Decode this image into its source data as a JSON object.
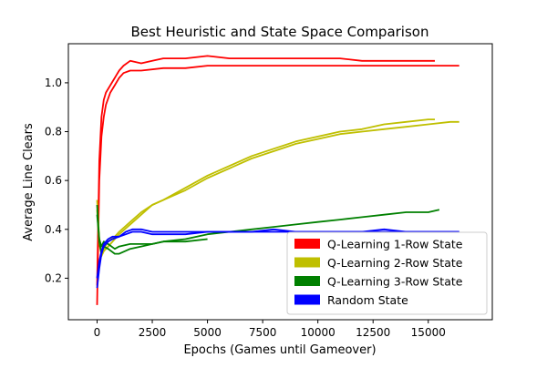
{
  "chart_data": {
    "type": "line",
    "title": "Best Heuristic and State Space Comparison",
    "xlabel": "Epochs (Games until Gameover)",
    "ylabel": "Average Line Clears",
    "xlim": [
      -1300,
      17900
    ],
    "ylim": [
      0.03,
      1.16
    ],
    "xticks": [
      0,
      2500,
      5000,
      7500,
      10000,
      12500,
      15000
    ],
    "xtick_labels": [
      "0",
      "2500",
      "5000",
      "7500",
      "10000",
      "12500",
      "15000"
    ],
    "yticks": [
      0.2,
      0.4,
      0.6,
      0.8,
      1.0
    ],
    "ytick_labels": [
      "0.2",
      "0.4",
      "0.6",
      "0.8",
      "1.0"
    ],
    "grid": false,
    "legend_position": "lower-right",
    "series": [
      {
        "name": "Q-Learning 1-Row State",
        "color": "#ff0000",
        "runs": [
          {
            "x": [
              0,
              50,
              100,
              200,
              300,
              400,
              600,
              800,
              1000,
              1200,
              1500,
              2000,
              2500,
              3000,
              4000,
              5000,
              6000,
              7000,
              8000,
              9000,
              10000,
              11000,
              12000,
              13000,
              14000,
              15000,
              15300
            ],
            "y": [
              0.17,
              0.42,
              0.68,
              0.86,
              0.93,
              0.96,
              0.99,
              1.02,
              1.05,
              1.07,
              1.09,
              1.08,
              1.09,
              1.1,
              1.1,
              1.11,
              1.1,
              1.1,
              1.1,
              1.1,
              1.1,
              1.1,
              1.09,
              1.09,
              1.09,
              1.09,
              1.09
            ]
          },
          {
            "x": [
              0,
              50,
              100,
              200,
              300,
              400,
              600,
              800,
              1000,
              1200,
              1500,
              2000,
              3000,
              4000,
              5000,
              6000,
              7000,
              8000,
              9000,
              10000,
              11000,
              12000,
              13000,
              14000,
              15000,
              16000,
              16400
            ],
            "y": [
              0.09,
              0.35,
              0.6,
              0.78,
              0.86,
              0.91,
              0.96,
              0.99,
              1.02,
              1.04,
              1.05,
              1.05,
              1.06,
              1.06,
              1.07,
              1.07,
              1.07,
              1.07,
              1.07,
              1.07,
              1.07,
              1.07,
              1.07,
              1.07,
              1.07,
              1.07,
              1.07
            ]
          }
        ]
      },
      {
        "name": "Q-Learning 2-Row State",
        "color": "#bfbf00",
        "runs": [
          {
            "x": [
              0,
              100,
              200,
              300,
              500,
              800,
              1000,
              1500,
              2000,
              2500,
              3000,
              4000,
              5000,
              6000,
              7000,
              8000,
              9000,
              10000,
              11000,
              12000,
              13000,
              14000,
              15000,
              15300
            ],
            "y": [
              0.48,
              0.34,
              0.3,
              0.32,
              0.35,
              0.37,
              0.39,
              0.43,
              0.47,
              0.5,
              0.52,
              0.57,
              0.62,
              0.66,
              0.7,
              0.73,
              0.76,
              0.78,
              0.8,
              0.81,
              0.83,
              0.84,
              0.85,
              0.85
            ]
          },
          {
            "x": [
              0,
              100,
              200,
              300,
              500,
              800,
              1000,
              1500,
              2000,
              2500,
              3000,
              4000,
              5000,
              6000,
              7000,
              8000,
              9000,
              10000,
              11000,
              12000,
              13000,
              14000,
              15000,
              16000,
              16400
            ],
            "y": [
              0.52,
              0.36,
              0.29,
              0.31,
              0.33,
              0.36,
              0.38,
              0.42,
              0.46,
              0.5,
              0.52,
              0.56,
              0.61,
              0.65,
              0.69,
              0.72,
              0.75,
              0.77,
              0.79,
              0.8,
              0.81,
              0.82,
              0.83,
              0.84,
              0.84
            ]
          }
        ]
      },
      {
        "name": "Q-Learning 3-Row State",
        "color": "#008000",
        "runs": [
          {
            "x": [
              0,
              100,
              200,
              300,
              500,
              800,
              1000,
              1500,
              2000,
              2500,
              3000,
              4000,
              5000,
              6000,
              7000,
              8000,
              9000,
              10000,
              11000,
              12000,
              13000,
              14000,
              15000,
              15500
            ],
            "y": [
              0.5,
              0.35,
              0.3,
              0.33,
              0.32,
              0.3,
              0.3,
              0.32,
              0.33,
              0.34,
              0.35,
              0.36,
              0.38,
              0.39,
              0.4,
              0.41,
              0.42,
              0.43,
              0.44,
              0.45,
              0.46,
              0.47,
              0.47,
              0.48
            ]
          },
          {
            "x": [
              0,
              100,
              200,
              300,
              500,
              800,
              1000,
              1500,
              2000,
              2500,
              3000,
              4000,
              5000
            ],
            "y": [
              0.46,
              0.36,
              0.33,
              0.35,
              0.34,
              0.32,
              0.33,
              0.34,
              0.34,
              0.34,
              0.35,
              0.35,
              0.36
            ]
          }
        ]
      },
      {
        "name": "Random State",
        "color": "#0000ff",
        "runs": [
          {
            "x": [
              0,
              100,
              200,
              300,
              500,
              700,
              1000,
              1300,
              1600,
              2000,
              2500,
              3000,
              4000,
              5000,
              6000,
              7000,
              8000,
              9000,
              10000,
              11000,
              12000,
              13000,
              14000,
              15000,
              16000,
              16400
            ],
            "y": [
              0.16,
              0.24,
              0.3,
              0.33,
              0.35,
              0.36,
              0.37,
              0.39,
              0.4,
              0.4,
              0.39,
              0.39,
              0.39,
              0.39,
              0.39,
              0.39,
              0.39,
              0.39,
              0.39,
              0.39,
              0.39,
              0.39,
              0.39,
              0.39,
              0.39,
              0.39
            ]
          },
          {
            "x": [
              0,
              100,
              200,
              300,
              500,
              700,
              1000,
              1300,
              1600,
              2000,
              2500,
              3000,
              4000,
              5000,
              6000,
              7000,
              8000,
              9000,
              10000,
              11000,
              12000,
              13000,
              14000,
              15000,
              16000,
              16400
            ],
            "y": [
              0.2,
              0.27,
              0.31,
              0.34,
              0.36,
              0.37,
              0.37,
              0.38,
              0.39,
              0.39,
              0.38,
              0.38,
              0.38,
              0.39,
              0.39,
              0.39,
              0.4,
              0.39,
              0.39,
              0.39,
              0.39,
              0.4,
              0.39,
              0.39,
              0.39,
              0.39
            ]
          }
        ]
      }
    ]
  }
}
